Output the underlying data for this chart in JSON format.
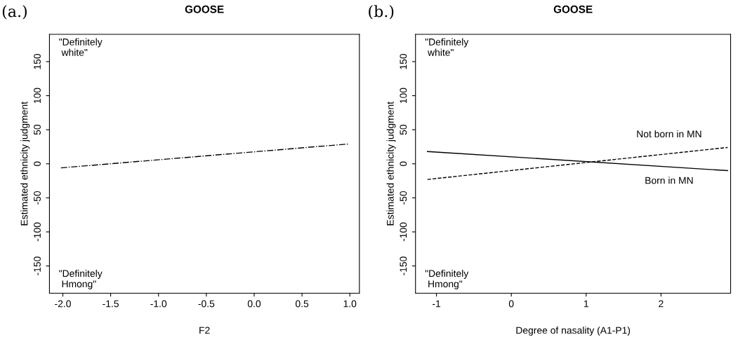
{
  "chart_data": [
    {
      "type": "line",
      "title": "GOOSE",
      "xlabel": "F2",
      "ylabel": "Estimated ethnicity judgment",
      "annotations": [
        "(a.)",
        "\"Definitely\n white\"",
        "\"Definitely\n Hmong\""
      ],
      "series": [
        {
          "x": [
            -2.02,
            0.98
          ],
          "values": [
            -6,
            29
          ],
          "color": "#000000",
          "line_style": "dashdot"
        }
      ],
      "xlim": [
        -2.14,
        1.1
      ],
      "xticks": [
        {
          "value": -2,
          "label": "-2.0"
        },
        {
          "value": -1.5,
          "label": "-1.5"
        },
        {
          "value": -1,
          "label": "-1.0"
        },
        {
          "value": -0.5,
          "label": "-0.5"
        },
        {
          "value": 0,
          "label": "0.0"
        },
        {
          "value": 0.5,
          "label": "0.5"
        },
        {
          "value": 1,
          "label": "1.0"
        }
      ],
      "ylim": [
        -190,
        190
      ],
      "yticks": [
        -150,
        -100,
        -50,
        0,
        50,
        100,
        150
      ],
      "grid": false
    },
    {
      "type": "line",
      "title": "GOOSE",
      "xlabel": "Degree of nasality (A1-P1)",
      "ylabel": "Estimated ethnicity judgment",
      "annotations": [
        "(b.)",
        "\"Definitely\n white\"",
        "\"Definitely\n Hmong\""
      ],
      "series": [
        {
          "name": "Born in MN",
          "x": [
            -1.12,
            2.89
          ],
          "values": [
            18,
            -10
          ],
          "color": "#000000",
          "line_style": "solid"
        },
        {
          "name": "Not born in MN",
          "x": [
            -1.12,
            2.89
          ],
          "values": [
            -23,
            24
          ],
          "color": "#000000",
          "line_style": "dashed"
        }
      ],
      "xlim": [
        -1.28,
        2.93
      ],
      "xticks": [
        -1,
        0,
        1,
        2
      ],
      "ylim": [
        -190,
        190
      ],
      "yticks": [
        -150,
        -100,
        -50,
        0,
        50,
        100,
        150
      ],
      "grid": false
    }
  ]
}
